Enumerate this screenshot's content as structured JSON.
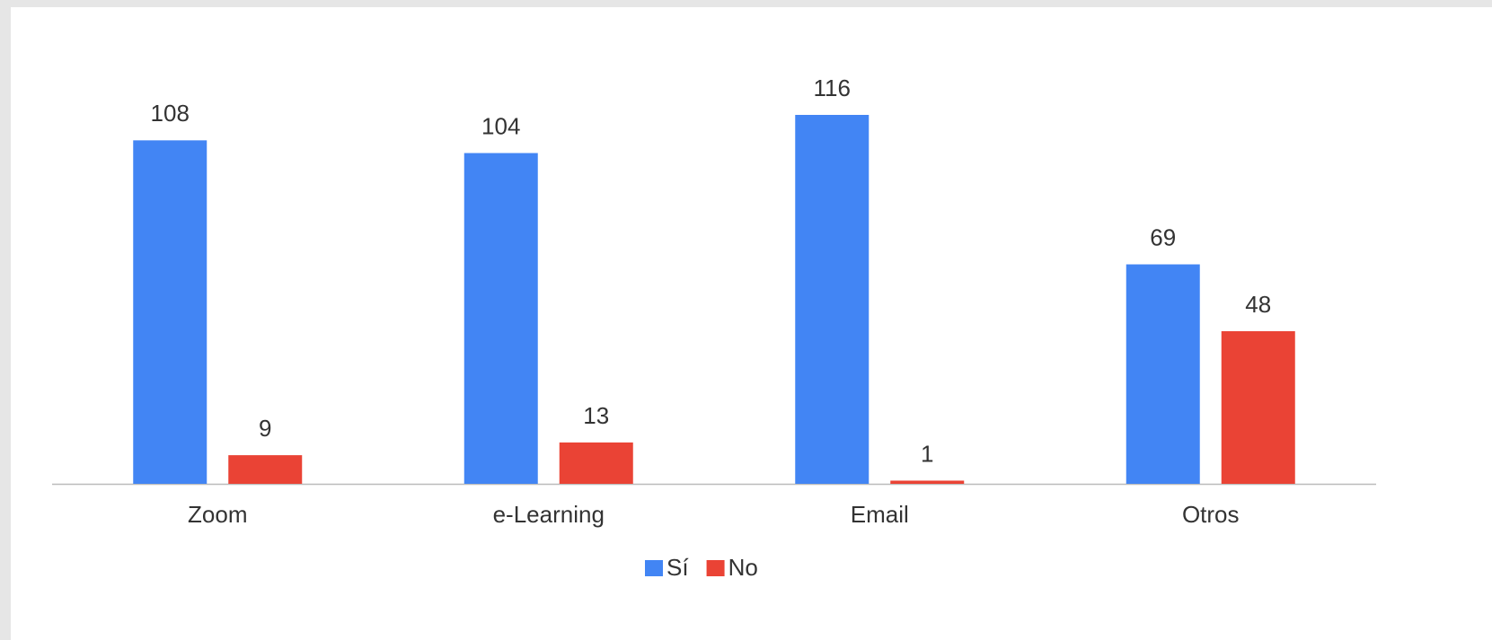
{
  "chart_data": {
    "type": "bar",
    "categories": [
      "Zoom",
      "e-Learning",
      "Email",
      "Otros"
    ],
    "series": [
      {
        "name": "Sí",
        "color": "#4285f4",
        "values": [
          108,
          104,
          116,
          69
        ]
      },
      {
        "name": "No",
        "color": "#ea4335",
        "values": [
          9,
          13,
          1,
          48
        ]
      }
    ]
  }
}
